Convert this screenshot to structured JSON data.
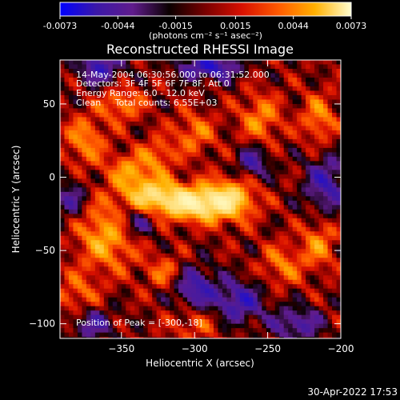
{
  "colorbar": {
    "tick_labels": [
      "-0.0073",
      "-0.0044",
      "-0.0015",
      "0.0015",
      "0.0044",
      "0.0073"
    ],
    "tick_values": [
      -0.0073,
      -0.0044,
      -0.0015,
      0.0015,
      0.0044,
      0.0073
    ],
    "range": [
      -0.0073,
      0.0073
    ],
    "unit_label": "(photons cm⁻² s⁻¹ asec⁻²)"
  },
  "chart_data": {
    "type": "heatmap",
    "title": "Reconstructed RHESSI Image",
    "xlabel": "Heliocentric X (arcsec)",
    "ylabel": "Heliocentric Y (arcsec)",
    "xlim": [
      -392,
      -200
    ],
    "ylim": [
      -110,
      80
    ],
    "x_ticks": [
      -350,
      -300,
      -250,
      -200
    ],
    "x_tick_labels": [
      "−350",
      "−300",
      "−250",
      "−200"
    ],
    "y_ticks": [
      -100,
      -50,
      0,
      50
    ],
    "y_tick_labels": [
      "−100",
      "−50",
      "0",
      "50"
    ],
    "annotations": [
      "14-May-2004 06:30:56.000 to 06:31:52.000",
      "Detectors: 3F 4F 5F 6F 7F 8F, Att 0",
      "Energy Range: 6.0 - 12.0 keV",
      "Clean     Total counts: 6.55E+03"
    ],
    "peak_label": "Position of Peak = [-300,-18]",
    "peak": [
      -300,
      -18
    ],
    "hotspots": [
      {
        "x": -300,
        "y": -18,
        "amp": 1.0,
        "sx": 16,
        "sy": 8
      },
      {
        "x": -330,
        "y": -12,
        "amp": 0.75,
        "sx": 14,
        "sy": 9
      },
      {
        "x": -275,
        "y": -15,
        "amp": 0.7,
        "sx": 12,
        "sy": 10
      },
      {
        "x": -360,
        "y": -40,
        "amp": 0.6,
        "sx": 14,
        "sy": 16
      },
      {
        "x": -375,
        "y": 25,
        "amp": 0.45,
        "sx": 10,
        "sy": 12
      },
      {
        "x": -350,
        "y": 50,
        "amp": 0.45,
        "sx": 10,
        "sy": 8
      },
      {
        "x": -300,
        "y": 30,
        "amp": 0.4,
        "sx": 10,
        "sy": 10
      },
      {
        "x": -255,
        "y": 40,
        "amp": 0.45,
        "sx": 10,
        "sy": 12
      },
      {
        "x": -215,
        "y": 40,
        "amp": 0.45,
        "sx": 8,
        "sy": 12
      },
      {
        "x": -215,
        "y": -45,
        "amp": 0.45,
        "sx": 8,
        "sy": 12
      },
      {
        "x": -240,
        "y": -60,
        "amp": 0.4,
        "sx": 10,
        "sy": 10
      },
      {
        "x": -320,
        "y": -65,
        "amp": 0.35,
        "sx": 10,
        "sy": 8
      },
      {
        "x": -380,
        "y": -80,
        "amp": 0.35,
        "sx": 10,
        "sy": 10
      },
      {
        "x": -300,
        "y": -100,
        "amp": 0.3,
        "sx": 12,
        "sy": 8
      },
      {
        "x": -325,
        "y": 15,
        "amp": 0.4,
        "sx": 8,
        "sy": 8
      },
      {
        "x": -345,
        "y": 5,
        "amp": 0.45,
        "sx": 10,
        "sy": 8
      }
    ],
    "coldspots": [
      {
        "x": -290,
        "y": 75,
        "amp": -0.7,
        "sx": 14,
        "sy": 6
      },
      {
        "x": -365,
        "y": 75,
        "amp": -0.6,
        "sx": 10,
        "sy": 8
      },
      {
        "x": -300,
        "y": -75,
        "amp": -0.6,
        "sx": 10,
        "sy": 10
      },
      {
        "x": -270,
        "y": -85,
        "amp": -0.6,
        "sx": 12,
        "sy": 10
      },
      {
        "x": -340,
        "y": -30,
        "amp": -0.5,
        "sx": 10,
        "sy": 8
      },
      {
        "x": -210,
        "y": -5,
        "amp": -0.55,
        "sx": 10,
        "sy": 14
      },
      {
        "x": -260,
        "y": 10,
        "amp": -0.5,
        "sx": 8,
        "sy": 8
      },
      {
        "x": -385,
        "y": -15,
        "amp": -0.4,
        "sx": 8,
        "sy": 10
      },
      {
        "x": -230,
        "y": -100,
        "amp": -0.5,
        "sx": 12,
        "sy": 8
      },
      {
        "x": -370,
        "y": -100,
        "amp": -0.45,
        "sx": 10,
        "sy": 8
      }
    ],
    "colormap_stops": [
      "#0000ff",
      "#3b18a8",
      "#601c8c",
      "#0a0000",
      "#7a0000",
      "#d81000",
      "#ff5a00",
      "#ffb000",
      "#ffffd0"
    ],
    "grid": false
  },
  "footer": {
    "date_stamp": "30-Apr-2022 17:53"
  }
}
